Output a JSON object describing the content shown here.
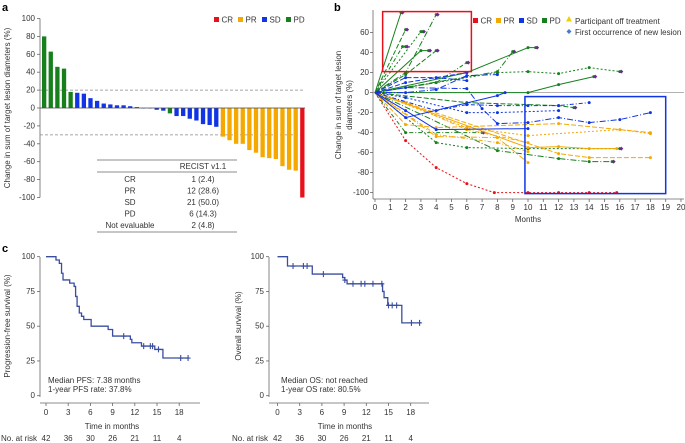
{
  "colors": {
    "CR": "#e8101a",
    "PR": "#f5a800",
    "SD": "#1035e6",
    "PD": "#17801c",
    "km": "#3a4ea0",
    "new_lesion": "#6a2c8c",
    "off_treatment": "#f0d000"
  },
  "panel_labels": {
    "a": "a",
    "b": "b",
    "c": "c"
  },
  "chart_data": [
    {
      "type": "bar",
      "panel": "a",
      "ylabel": "Change in sum of target lesion diameters (%)",
      "ylim": [
        -100,
        100
      ],
      "yticks": [
        100,
        80,
        60,
        40,
        20,
        0,
        -20,
        -40,
        -60,
        -80,
        -100
      ],
      "reference_lines": [
        20,
        -30
      ],
      "legend": [
        "CR",
        "PR",
        "SD",
        "PD"
      ],
      "legend_position": "top-right",
      "values": [
        80,
        63,
        46,
        44,
        18,
        17,
        16,
        11,
        8,
        5,
        4,
        3,
        3,
        2,
        1,
        0,
        0,
        -2,
        -3,
        -6,
        -9,
        -9,
        -12,
        -14,
        -18,
        -19,
        -21,
        -32,
        -36,
        -40,
        -40,
        -47,
        -50,
        -55,
        -56,
        -57,
        -65,
        -69,
        -70,
        -100
      ],
      "response": [
        "PD",
        "PD",
        "PD",
        "PD",
        "PD",
        "SD",
        "SD",
        "SD",
        "SD",
        "SD",
        "SD",
        "SD",
        "SD",
        "SD",
        "SD",
        "SD",
        "SD",
        "SD",
        "SD",
        "PD",
        "SD",
        "SD",
        "SD",
        "SD",
        "SD",
        "SD",
        "SD",
        "PR",
        "PR",
        "PR",
        "PR",
        "PR",
        "PR",
        "PR",
        "PR",
        "PR",
        "PR",
        "PR",
        "PR",
        "CR"
      ],
      "table": {
        "header": "RECIST v1.1",
        "rows": [
          {
            "label": "CR",
            "value": "1 (2.4)"
          },
          {
            "label": "PR",
            "value": "12 (28.6)"
          },
          {
            "label": "SD",
            "value": "21 (50.0)"
          },
          {
            "label": "PD",
            "value": "6 (14.3)"
          },
          {
            "label": "Not evaluable",
            "value": "2 (4.8)"
          }
        ]
      }
    },
    {
      "type": "line",
      "panel": "b",
      "xlabel": "Months",
      "ylabel_line1": "Change in sum of target lesion",
      "ylabel_line2": "diameters (%)",
      "xlim": [
        0,
        20
      ],
      "ylim": [
        -100,
        80
      ],
      "xticks": [
        0,
        1,
        2,
        3,
        4,
        5,
        6,
        7,
        8,
        9,
        10,
        11,
        12,
        13,
        14,
        15,
        16,
        17,
        18,
        19,
        20
      ],
      "yticks": [
        60,
        40,
        20,
        0,
        -20,
        -40,
        -60,
        -80,
        -100
      ],
      "legend": [
        "CR",
        "PR",
        "SD",
        "PD"
      ],
      "legend_extra": [
        "Participant off treatment",
        "First occurrence of new lesion"
      ],
      "highlight_boxes": [
        {
          "color": "#e8101a",
          "x": [
            0.5,
            6.3
          ],
          "y": [
            20,
            80
          ]
        },
        {
          "color": "#1035e6",
          "x": [
            9.8,
            19
          ],
          "y": [
            -102,
            -5
          ]
        }
      ],
      "series": [
        {
          "response": "PD",
          "x": [
            0,
            1.7
          ],
          "y": [
            0,
            80
          ]
        },
        {
          "response": "PD",
          "x": [
            0,
            2
          ],
          "y": [
            0,
            63
          ]
        },
        {
          "response": "PD",
          "x": [
            0,
            1.8,
            2
          ],
          "y": [
            0,
            46,
            46
          ]
        },
        {
          "response": "PD",
          "x": [
            0,
            3,
            3.1
          ],
          "y": [
            0,
            61,
            61
          ]
        },
        {
          "response": "PD",
          "x": [
            0,
            2,
            4
          ],
          "y": [
            0,
            20,
            78
          ]
        },
        {
          "response": "PD",
          "x": [
            0,
            3,
            3.5
          ],
          "y": [
            0,
            42,
            42
          ]
        },
        {
          "response": "PD",
          "x": [
            0,
            2,
            4
          ],
          "y": [
            0,
            18,
            42
          ]
        },
        {
          "response": "PD",
          "x": [
            0,
            4,
            6
          ],
          "y": [
            0,
            10,
            30
          ]
        },
        {
          "response": "PD",
          "x": [
            0,
            8,
            10,
            12,
            14,
            16
          ],
          "y": [
            0,
            20,
            21,
            19,
            25,
            21
          ]
        },
        {
          "response": "PD",
          "x": [
            0,
            8,
            9
          ],
          "y": [
            0,
            21,
            41
          ]
        },
        {
          "response": "PD",
          "x": [
            0,
            6,
            10,
            10.5
          ],
          "y": [
            0,
            20,
            45,
            45
          ]
        },
        {
          "response": "PD",
          "x": [
            0,
            6,
            12,
            13
          ],
          "y": [
            0,
            -10,
            -13,
            -15
          ]
        },
        {
          "response": "PD",
          "x": [
            0,
            2,
            7
          ],
          "y": [
            0,
            -40,
            -40
          ]
        },
        {
          "response": "PD",
          "x": [
            0,
            4,
            6,
            10,
            16
          ],
          "y": [
            0,
            -50,
            -55,
            -56,
            -56
          ]
        },
        {
          "response": "PD",
          "x": [
            0,
            8,
            12,
            14,
            15.5
          ],
          "y": [
            0,
            -58,
            -66,
            -69,
            -69
          ]
        },
        {
          "response": "PD",
          "x": [
            0,
            10,
            12,
            14.3
          ],
          "y": [
            0,
            0,
            8,
            16
          ]
        },
        {
          "response": "PR",
          "x": [
            0,
            2,
            4,
            12,
            18
          ],
          "y": [
            0,
            -32,
            -35,
            -31,
            -40
          ]
        },
        {
          "response": "PR",
          "x": [
            0,
            4,
            8,
            10
          ],
          "y": [
            0,
            -42,
            -50,
            -59
          ]
        },
        {
          "response": "PR",
          "x": [
            0,
            6,
            10,
            16,
            18
          ],
          "y": [
            0,
            -35,
            -43,
            -37,
            -41
          ]
        },
        {
          "response": "PR",
          "x": [
            0,
            4,
            8,
            10
          ],
          "y": [
            0,
            -44,
            -45,
            -70
          ]
        },
        {
          "response": "PR",
          "x": [
            0,
            10,
            12,
            14,
            15.8
          ],
          "y": [
            0,
            -55,
            -54,
            -56,
            -56
          ]
        },
        {
          "response": "PR",
          "x": [
            0,
            12,
            14,
            18
          ],
          "y": [
            0,
            -61,
            -65,
            -65
          ]
        },
        {
          "response": "PR",
          "x": [
            0,
            2,
            6,
            10
          ],
          "y": [
            0,
            -10,
            -37,
            -50
          ]
        },
        {
          "response": "CR",
          "x": [
            0,
            2,
            4,
            6,
            7.8,
            10,
            12,
            14,
            15.8
          ],
          "y": [
            0,
            -48,
            -75,
            -91,
            -100,
            -100,
            -100,
            -100,
            -100
          ]
        },
        {
          "response": "SD",
          "x": [
            0,
            2,
            6,
            7,
            8,
            10,
            12,
            14,
            16,
            18
          ],
          "y": [
            0,
            5,
            4,
            -16,
            -31,
            -30,
            -25,
            -30,
            -27,
            -20
          ]
        },
        {
          "response": "SD",
          "x": [
            0,
            2,
            4,
            10
          ],
          "y": [
            0,
            -18,
            -37,
            -36
          ]
        },
        {
          "response": "SD",
          "x": [
            0,
            2,
            4,
            6
          ],
          "y": [
            0,
            15,
            15,
            12
          ]
        },
        {
          "response": "SD",
          "x": [
            0,
            4,
            6,
            8,
            10,
            12,
            14
          ],
          "y": [
            0,
            -18,
            -12,
            -13,
            -13,
            -13,
            -10
          ]
        },
        {
          "response": "SD",
          "x": [
            0,
            2,
            6,
            8,
            12
          ],
          "y": [
            0,
            -5,
            -20,
            -20,
            -18
          ]
        },
        {
          "response": "SD",
          "x": [
            0,
            2,
            4,
            6,
            8
          ],
          "y": [
            0,
            0,
            3,
            17,
            18
          ]
        },
        {
          "response": "SD",
          "x": [
            0,
            2,
            8,
            8.5
          ],
          "y": [
            0,
            -25,
            -3,
            0
          ]
        },
        {
          "response": "SD",
          "x": [
            0,
            2,
            6
          ],
          "y": [
            0,
            10,
            20
          ]
        }
      ]
    },
    {
      "type": "line",
      "panel": "c-left",
      "ylabel": "Progression-free survival (%)",
      "xlabel": "Time in months",
      "xlim": [
        0,
        20
      ],
      "ylim": [
        0,
        100
      ],
      "xticks": [
        0,
        3,
        6,
        9,
        12,
        15,
        18
      ],
      "yticks": [
        100,
        75,
        50,
        25,
        0
      ],
      "annotation": [
        "Median PFS: 7.38 months",
        "1-year PFS rate: 37.8%"
      ],
      "at_risk_label": "No. at risk",
      "at_risk": [
        42,
        36,
        30,
        26,
        21,
        11,
        4
      ],
      "steps": [
        [
          0,
          100
        ],
        [
          1.35,
          97.6
        ],
        [
          1.8,
          95.2
        ],
        [
          2.1,
          88.1
        ],
        [
          2.3,
          83.3
        ],
        [
          3.2,
          81
        ],
        [
          3.8,
          78.6
        ],
        [
          4.0,
          71.4
        ],
        [
          4.2,
          64.3
        ],
        [
          4.5,
          59.5
        ],
        [
          4.8,
          57.1
        ],
        [
          5.1,
          54.8
        ],
        [
          6.1,
          50
        ],
        [
          8.4,
          47.6
        ],
        [
          9.0,
          42.9
        ],
        [
          11.4,
          40.5
        ],
        [
          11.6,
          38.1
        ],
        [
          12.9,
          35.7
        ],
        [
          14.7,
          33.3
        ],
        [
          15.8,
          27.1
        ]
      ],
      "end": 19.2,
      "censored": [
        10.5,
        13.2,
        14.1,
        14.4,
        15.2,
        18.2,
        19.2
      ]
    },
    {
      "type": "line",
      "panel": "c-right",
      "ylabel": "Overall survival (%)",
      "xlabel": "Time in months",
      "xlim": [
        0,
        20
      ],
      "ylim": [
        0,
        100
      ],
      "xticks": [
        0,
        3,
        6,
        9,
        12,
        15,
        18
      ],
      "yticks": [
        100,
        75,
        50,
        25,
        0
      ],
      "annotation": [
        "Median OS: not reached",
        "1-year OS rate: 80.5%"
      ],
      "at_risk_label": "No. at risk",
      "at_risk": [
        42,
        36,
        30,
        26,
        21,
        11,
        4
      ],
      "steps": [
        [
          0,
          100
        ],
        [
          1.35,
          93.3
        ],
        [
          4.7,
          87.5
        ],
        [
          8.8,
          85
        ],
        [
          9.1,
          83.2
        ],
        [
          9.4,
          80.5
        ],
        [
          14.2,
          75
        ],
        [
          14.4,
          70.5
        ],
        [
          14.9,
          65
        ],
        [
          16.8,
          52.4
        ]
      ],
      "end": 19.4,
      "censored": [
        2.1,
        3.5,
        4.0,
        6.2,
        9.1,
        10.2,
        11.3,
        11.8,
        12.9,
        14.1,
        15.0,
        15.5,
        16.1,
        18.1,
        19.2
      ]
    }
  ]
}
